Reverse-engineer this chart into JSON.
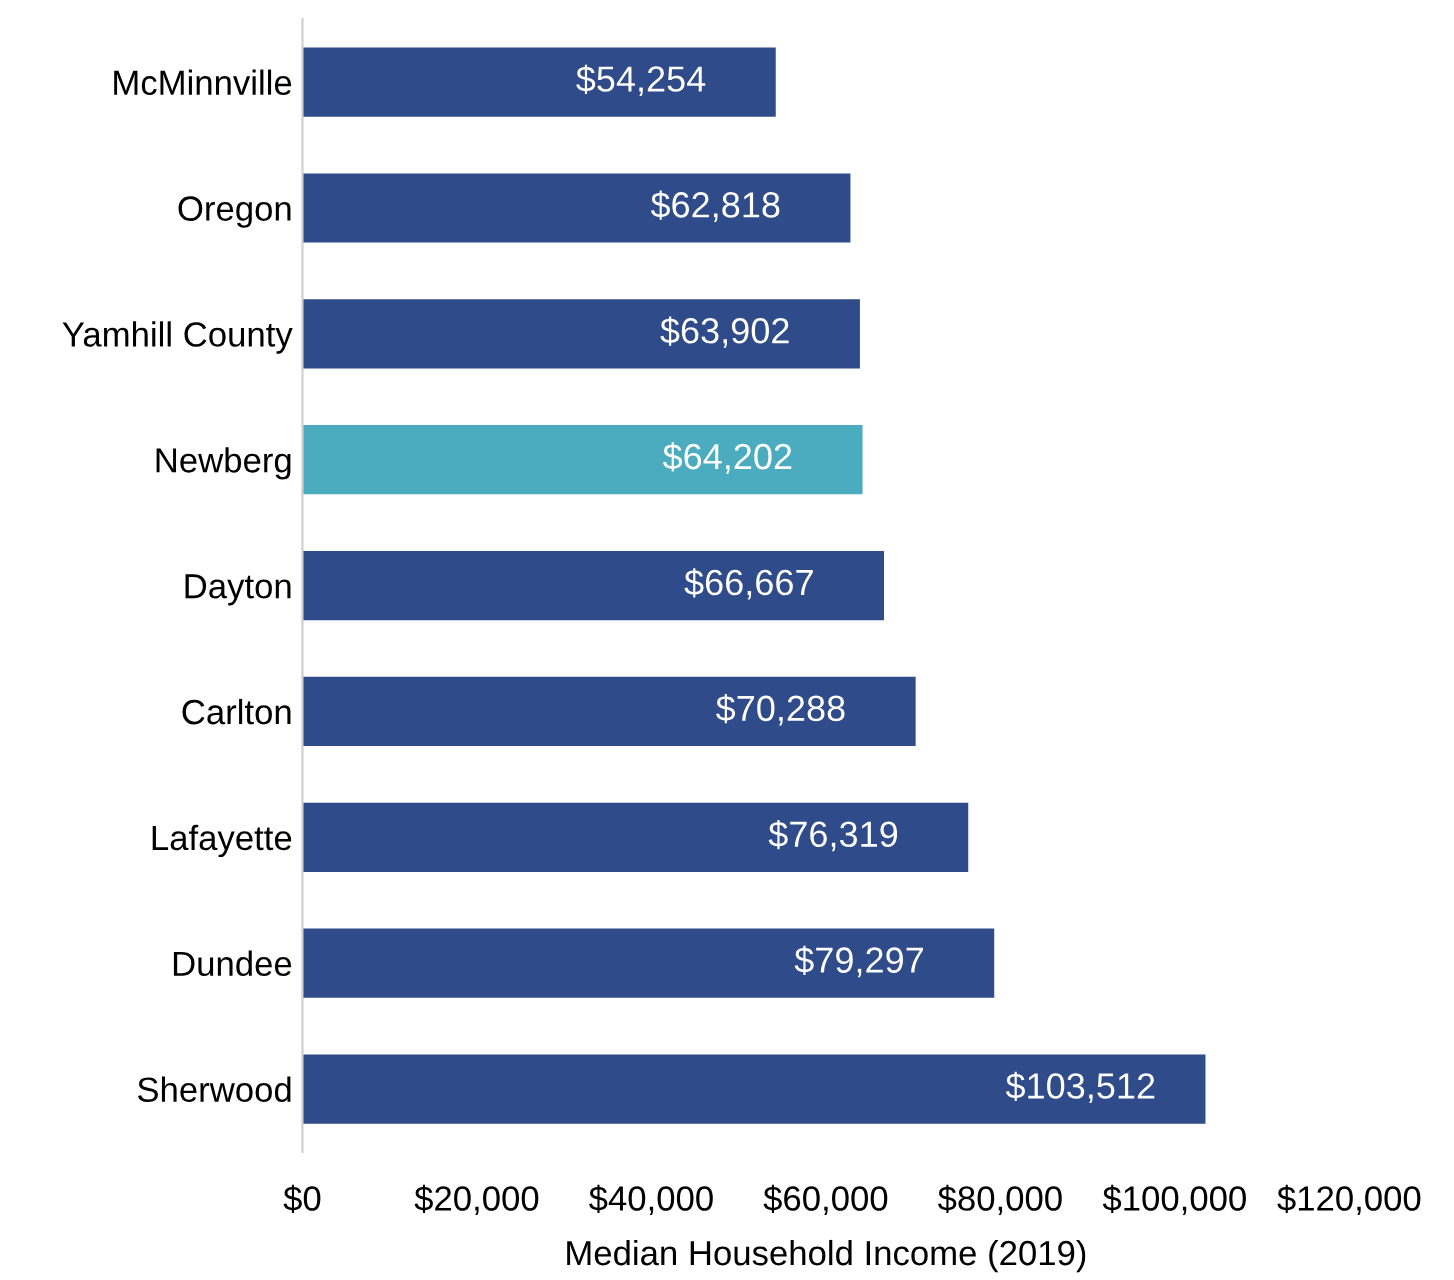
{
  "chart_data": {
    "type": "bar",
    "orientation": "horizontal",
    "xlabel": "Median Household Income (2019)",
    "categories": [
      "McMinnville",
      "Oregon",
      "Yamhill County",
      "Newberg",
      "Dayton",
      "Carlton",
      "Lafayette",
      "Dundee",
      "Sherwood"
    ],
    "values": [
      54254,
      62818,
      63902,
      64202,
      66667,
      70288,
      76319,
      79297,
      103512
    ],
    "colors": [
      "#2f4b8a",
      "#2f4b8a",
      "#2f4b8a",
      "#4bacc0",
      "#2f4b8a",
      "#2f4b8a",
      "#2f4b8a",
      "#2f4b8a",
      "#2f4b8a"
    ],
    "value_labels": [
      "$54,254",
      "$62,818",
      "$63,902",
      "$64,202",
      "$66,667",
      "$70,288",
      "$76,319",
      "$79,297",
      "$103,512"
    ],
    "xlim": [
      0,
      120000
    ],
    "xticks": [
      {
        "value": 0,
        "label": "$0"
      },
      {
        "value": 20000,
        "label": "$20,000"
      },
      {
        "value": 40000,
        "label": "$40,000"
      },
      {
        "value": 60000,
        "label": "$60,000"
      },
      {
        "value": 80000,
        "label": "$80,000"
      },
      {
        "value": 100000,
        "label": "$100,000"
      },
      {
        "value": 120000,
        "label": "$120,000"
      }
    ],
    "grid": false,
    "legend": false
  }
}
